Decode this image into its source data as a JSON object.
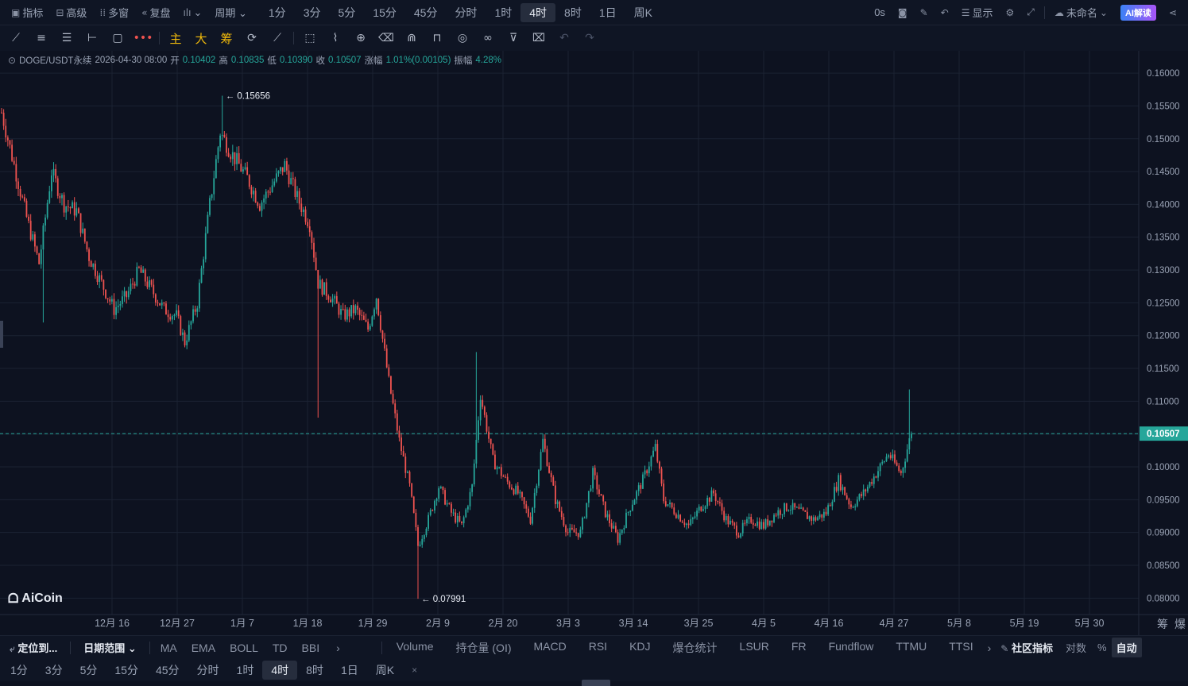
{
  "top_toolbar": {
    "left": [
      {
        "icon": "indicator-icon",
        "label": "指标"
      },
      {
        "icon": "advanced-icon",
        "label": "高级"
      },
      {
        "icon": "multi-window-icon",
        "label": "多窗"
      },
      {
        "icon": "replay-icon",
        "label": "复盘"
      },
      {
        "icon": "chart-type-icon",
        "label": "⌄"
      },
      {
        "icon": "",
        "label": "周期 ⌄"
      }
    ],
    "periods": [
      "1分",
      "3分",
      "5分",
      "15分",
      "45分",
      "分时",
      "1时",
      "4时",
      "8时",
      "1日",
      "周K"
    ],
    "active_period": "4时",
    "right": {
      "countdown": "0s",
      "display_label": "显示",
      "layout_name": "未命名",
      "ai_label": "AI解读"
    }
  },
  "draw_toolbar": {
    "text_buttons": [
      "主",
      "大",
      "筹"
    ]
  },
  "info_line": {
    "symbol": "DOGE/USDT永续",
    "datetime": "2026-04-30 08:00",
    "open_label": "开",
    "open": "0.10402",
    "high_label": "高",
    "high": "0.10835",
    "low_label": "低",
    "low": "0.10390",
    "close_label": "收",
    "close": "0.10507",
    "change_label": "涨幅",
    "change": "1.01%(0.00105)",
    "amplitude_label": "振幅",
    "amplitude": "4.28%"
  },
  "chart_data": {
    "type": "candlestick",
    "y_ticks": [
      "0.16000",
      "0.15500",
      "0.15000",
      "0.14500",
      "0.14000",
      "0.13500",
      "0.13000",
      "0.12500",
      "0.12000",
      "0.11500",
      "0.11000",
      "0.10500",
      "0.10000",
      "0.09500",
      "0.09000",
      "0.08500",
      "0.08000"
    ],
    "ylim": [
      0.0775,
      0.1634
    ],
    "x_ticks": [
      "12月 16",
      "12月 27",
      "1月 7",
      "1月 18",
      "1月 29",
      "2月 9",
      "2月 20",
      "3月 3",
      "3月 14",
      "3月 25",
      "4月 5",
      "4月 16",
      "4月 27",
      "5月 8",
      "5月 19",
      "5月 30"
    ],
    "current_price": "0.10507",
    "max_label": "0.15656",
    "min_label": "0.07991",
    "up_color": "#26a69a",
    "down_color": "#ef5350",
    "trend": [
      [
        0,
        0.154
      ],
      [
        6,
        0.146
      ],
      [
        12,
        0.138
      ],
      [
        18,
        0.131
      ],
      [
        24,
        0.145
      ],
      [
        30,
        0.14
      ],
      [
        36,
        0.139
      ],
      [
        42,
        0.132
      ],
      [
        48,
        0.128
      ],
      [
        54,
        0.124
      ],
      [
        60,
        0.126
      ],
      [
        66,
        0.13
      ],
      [
        72,
        0.127
      ],
      [
        78,
        0.124
      ],
      [
        84,
        0.123
      ],
      [
        88,
        0.119
      ],
      [
        94,
        0.125
      ],
      [
        100,
        0.14
      ],
      [
        105,
        0.151
      ],
      [
        110,
        0.148
      ],
      [
        118,
        0.144
      ],
      [
        124,
        0.14
      ],
      [
        130,
        0.143
      ],
      [
        136,
        0.146
      ],
      [
        142,
        0.141
      ],
      [
        148,
        0.137
      ],
      [
        152,
        0.128
      ],
      [
        158,
        0.126
      ],
      [
        164,
        0.123
      ],
      [
        170,
        0.124
      ],
      [
        176,
        0.121
      ],
      [
        180,
        0.126
      ],
      [
        186,
        0.113
      ],
      [
        191,
        0.104
      ],
      [
        196,
        0.097
      ],
      [
        200,
        0.088
      ],
      [
        205,
        0.092
      ],
      [
        210,
        0.097
      ],
      [
        216,
        0.093
      ],
      [
        221,
        0.091
      ],
      [
        226,
        0.097
      ],
      [
        230,
        0.111
      ],
      [
        236,
        0.101
      ],
      [
        242,
        0.098
      ],
      [
        248,
        0.096
      ],
      [
        254,
        0.092
      ],
      [
        260,
        0.104
      ],
      [
        266,
        0.095
      ],
      [
        272,
        0.09
      ],
      [
        278,
        0.09
      ],
      [
        284,
        0.099
      ],
      [
        290,
        0.093
      ],
      [
        296,
        0.089
      ],
      [
        302,
        0.094
      ],
      [
        308,
        0.098
      ],
      [
        314,
        0.103
      ],
      [
        318,
        0.095
      ],
      [
        324,
        0.093
      ],
      [
        330,
        0.091
      ],
      [
        336,
        0.094
      ],
      [
        342,
        0.096
      ],
      [
        348,
        0.092
      ],
      [
        354,
        0.09
      ],
      [
        360,
        0.092
      ],
      [
        366,
        0.091
      ],
      [
        372,
        0.093
      ],
      [
        378,
        0.094
      ],
      [
        384,
        0.093
      ],
      [
        390,
        0.092
      ],
      [
        396,
        0.093
      ],
      [
        402,
        0.098
      ],
      [
        408,
        0.094
      ],
      [
        414,
        0.096
      ],
      [
        420,
        0.099
      ],
      [
        426,
        0.102
      ],
      [
        432,
        0.099
      ],
      [
        436,
        0.104
      ],
      [
        437,
        0.105
      ]
    ],
    "wicks": [
      [
        20,
        0.122
      ],
      [
        106,
        0.15656
      ],
      [
        152,
        0.1075
      ],
      [
        200,
        0.07991
      ],
      [
        228,
        0.1175
      ],
      [
        436,
        0.1118
      ]
    ]
  },
  "branding": {
    "logo_text": "AiCoin"
  },
  "indicator_bar": {
    "locate": "定位到...",
    "date_range": "日期范围 ⌄",
    "main_indicators": [
      "MA",
      "EMA",
      "BOLL",
      "TD",
      "BBI"
    ],
    "sub_indicators": [
      "Volume",
      "持仓量 (OI)",
      "MACD",
      "RSI",
      "KDJ",
      "爆仓统计",
      "LSUR",
      "FR",
      "Fundflow",
      "TTMU",
      "TTSI"
    ],
    "community": "社区指标",
    "log_label": "对数",
    "pct_label": "%",
    "auto_label": "自动"
  },
  "period_bar": {
    "periods": [
      "1分",
      "3分",
      "5分",
      "15分",
      "45分",
      "分时",
      "1时",
      "4时",
      "8时",
      "1日",
      "周K"
    ],
    "active": "4时",
    "close": "×"
  },
  "chart_side_labels": [
    "筹",
    "爆"
  ]
}
